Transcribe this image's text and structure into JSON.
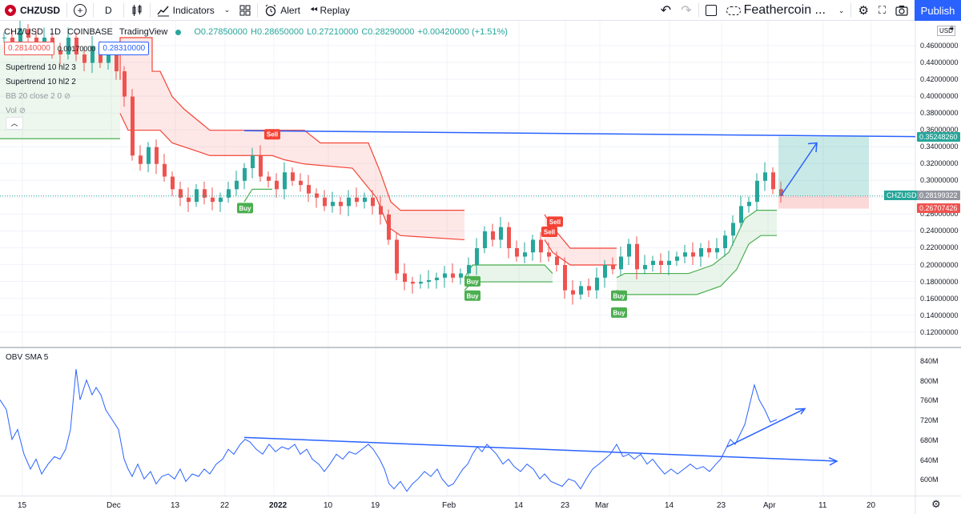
{
  "toolbar": {
    "symbol": "CHZUSD",
    "interval": "D",
    "indicators_label": "Indicators",
    "alert_label": "Alert",
    "replay_label": "Replay",
    "layout_name": "Feathercoin ...",
    "publish_label": "Publish"
  },
  "legend": {
    "pair": "CHZ/USD",
    "interval": "1D",
    "exchange": "COINBASE",
    "source": "TradingView",
    "open": "O0.27850000",
    "high": "H0.28650000",
    "low": "L0.27210000",
    "close": "C0.28290000",
    "change": "+0.00420000 (+1.51%)",
    "sell_price": "0.28140000",
    "spread": "0.00170000",
    "buy_price": "0.28310000"
  },
  "indicators": [
    {
      "label": "Supertrend 10 hl2 3"
    },
    {
      "label": "Supertrend 10 hl2 2"
    },
    {
      "label": "BB 20 close 2 0"
    },
    {
      "label": "Vol"
    }
  ],
  "price_axis": {
    "currency": "USD",
    "ticks": [
      "0.46000000",
      "0.44000000",
      "0.42000000",
      "0.40000000",
      "0.38000000",
      "0.36000000",
      "0.34000000",
      "0.32000000",
      "0.30000000",
      "0.28000000",
      "0.26000000",
      "0.24000000",
      "0.22000000",
      "0.20000000",
      "0.18000000",
      "0.16000000",
      "0.14000000",
      "0.12000000"
    ],
    "target_tag": "0.35248260",
    "current_tag": "0.28199322",
    "stop_tag": "0.26707426",
    "symbol_tag": "CHZUSD"
  },
  "obv": {
    "label": "OBV SMA 5",
    "ticks": [
      "840M",
      "800M",
      "760M",
      "720M",
      "680M",
      "640M",
      "600M"
    ]
  },
  "time_axis": {
    "labels": [
      "15",
      "Dec",
      "13",
      "22",
      "2022",
      "10",
      "19",
      "Feb",
      "14",
      "23",
      "Mar",
      "14",
      "23",
      "Apr",
      "11",
      "20"
    ]
  },
  "signals": {
    "sell": "Sell",
    "buy": "Buy"
  },
  "colors": {
    "up": "#26a69a",
    "down": "#ef5350",
    "accent": "#2962ff",
    "trend_line": "#2962ff",
    "supertrend_up": "#4caf50",
    "supertrend_down": "#f44336"
  }
}
